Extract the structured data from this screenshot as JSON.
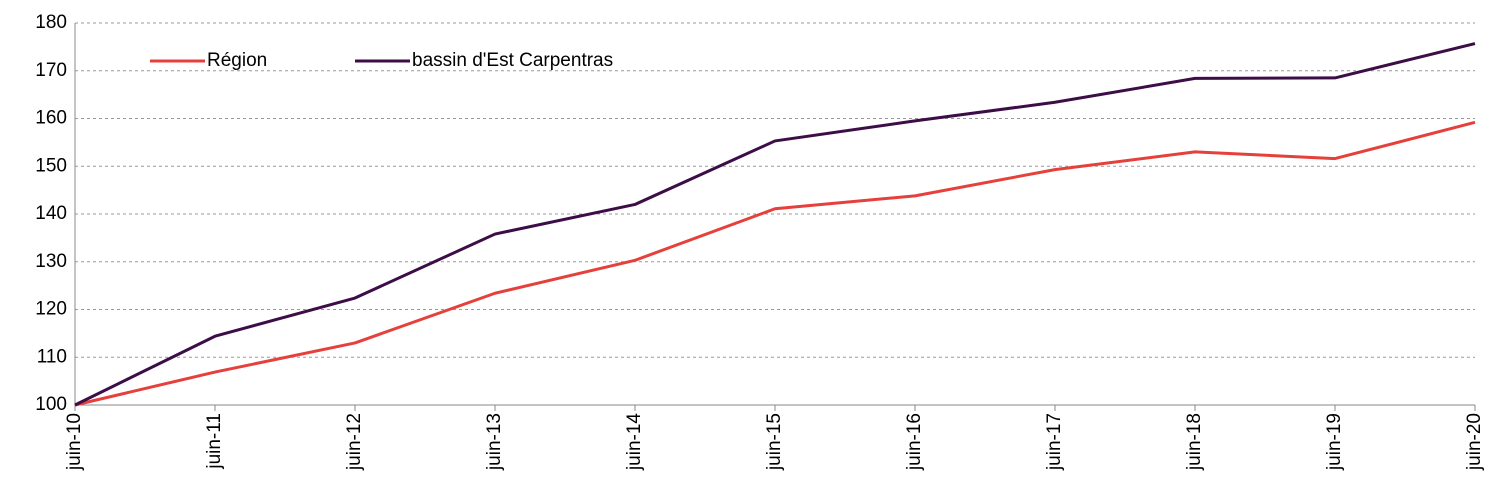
{
  "chart_data": {
    "type": "line",
    "categories": [
      "juin-10",
      "juin-11",
      "juin-12",
      "juin-13",
      "juin-14",
      "juin-15",
      "juin-16",
      "juin-17",
      "juin-18",
      "juin-19",
      "juin-20"
    ],
    "series": [
      {
        "name": "Région",
        "color": "#e5403b",
        "values": [
          100,
          106.9,
          113.0,
          123.4,
          130.3,
          141.1,
          143.8,
          149.3,
          153.0,
          151.6,
          159.2
        ]
      },
      {
        "name": "bassin d'Est Carpentras",
        "color": "#3d0d47",
        "values": [
          100,
          114.4,
          122.4,
          135.8,
          142.0,
          155.3,
          159.5,
          163.4,
          168.4,
          168.5,
          175.7
        ]
      }
    ],
    "ylim": [
      100,
      180
    ],
    "yticks": [
      100,
      110,
      120,
      130,
      140,
      150,
      160,
      170,
      180
    ],
    "grid": true,
    "legend": "top-left"
  }
}
